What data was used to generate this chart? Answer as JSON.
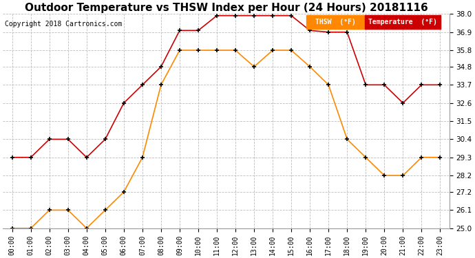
{
  "title": "Outdoor Temperature vs THSW Index per Hour (24 Hours) 20181116",
  "copyright": "Copyright 2018 Cartronics.com",
  "hours": [
    "00:00",
    "01:00",
    "02:00",
    "03:00",
    "04:00",
    "05:00",
    "06:00",
    "07:00",
    "08:00",
    "09:00",
    "10:00",
    "11:00",
    "12:00",
    "13:00",
    "14:00",
    "15:00",
    "16:00",
    "17:00",
    "18:00",
    "19:00",
    "20:00",
    "21:00",
    "22:00",
    "23:00"
  ],
  "temperature": [
    29.3,
    29.3,
    30.4,
    30.4,
    29.3,
    30.4,
    32.6,
    33.7,
    34.8,
    37.0,
    37.0,
    37.9,
    37.9,
    37.9,
    37.9,
    37.9,
    37.0,
    36.9,
    36.9,
    33.7,
    33.7,
    32.6,
    33.7,
    33.7
  ],
  "thsw": [
    25.0,
    25.0,
    26.1,
    26.1,
    25.0,
    26.1,
    27.2,
    29.3,
    33.7,
    35.8,
    35.8,
    35.8,
    35.8,
    34.8,
    35.8,
    35.8,
    34.8,
    33.7,
    30.4,
    29.3,
    28.2,
    28.2,
    29.3,
    29.3
  ],
  "temp_color": "#cc0000",
  "thsw_color": "#ff8800",
  "marker": "+",
  "marker_color": "#000000",
  "marker_size": 5,
  "ylim": [
    25.0,
    38.0
  ],
  "yticks": [
    25.0,
    26.1,
    27.2,
    28.2,
    29.3,
    30.4,
    31.5,
    32.6,
    33.7,
    34.8,
    35.8,
    36.9,
    38.0
  ],
  "background_color": "#ffffff",
  "grid_color": "#bbbbbb",
  "title_fontsize": 11,
  "copyright_fontsize": 7,
  "legend_thsw_label": "THSW  (°F)",
  "legend_temp_label": "Temperature  (°F)",
  "legend_thsw_bg": "#ff8800",
  "legend_temp_bg": "#cc0000"
}
